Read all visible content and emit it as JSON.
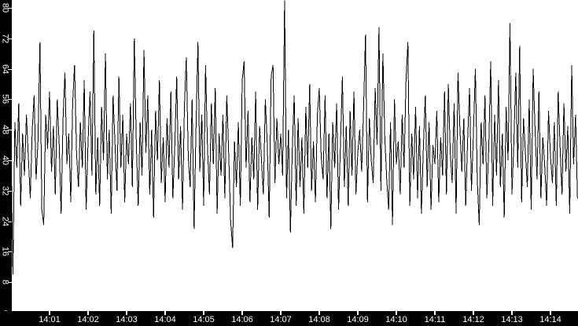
{
  "window": {
    "background": "#ffffff"
  },
  "chart_data": {
    "type": "line",
    "title": "",
    "legend": "none",
    "grid": "off",
    "line_color": "#000000",
    "plot_bg": "#ffffff",
    "axis_band_color": "#000000",
    "axis_label_color": "#ffffff",
    "x_start_time": "14:00",
    "sample_interval_seconds": 3,
    "x_tick_labels": [
      "14:01",
      "14:02",
      "14:03",
      "14:04",
      "14:05",
      "14:06",
      "14:07",
      "14:08",
      "14:09",
      "14:10",
      "14:11",
      "14:12",
      "14:13",
      "14:14"
    ],
    "y_ticks": [
      0,
      8,
      16,
      24,
      32,
      40,
      48,
      56,
      64,
      72,
      80
    ],
    "y_tick_labels": [
      "0",
      "8",
      "16",
      "24",
      "32",
      "40",
      "48",
      "56",
      "64",
      "72",
      "80"
    ],
    "ylim": [
      0,
      83
    ],
    "values": [
      44,
      10,
      50,
      38,
      55,
      28,
      47,
      36,
      52,
      41,
      30,
      48,
      57,
      35,
      45,
      71,
      27,
      23,
      52,
      43,
      58,
      37,
      49,
      31,
      56,
      44,
      26,
      51,
      63,
      39,
      47,
      29,
      55,
      65,
      42,
      33,
      50,
      38,
      61,
      27,
      45,
      58,
      36,
      74,
      31,
      46,
      28,
      54,
      40,
      68,
      35,
      48,
      26,
      57,
      44,
      32,
      62,
      38,
      52,
      29,
      47,
      39,
      55,
      33,
      72,
      45,
      28,
      50,
      36,
      69,
      42,
      57,
      31,
      48,
      25,
      53,
      40,
      61,
      34,
      46,
      29,
      51,
      38,
      58,
      30,
      44,
      62,
      35,
      49,
      27,
      54,
      67,
      41,
      33,
      56,
      22,
      48,
      71,
      37,
      52,
      28,
      65,
      43,
      31,
      55,
      39,
      59,
      26,
      47,
      36,
      52,
      30,
      57,
      41,
      24,
      17,
      45,
      33,
      50,
      28,
      61,
      66,
      38,
      53,
      29,
      46,
      35,
      58,
      27,
      49,
      40,
      31,
      56,
      44,
      25,
      62,
      65,
      34,
      51,
      39,
      47,
      36,
      82,
      30,
      48,
      21,
      43,
      57,
      28,
      51,
      33,
      46,
      26,
      54,
      38,
      60,
      32,
      45,
      29,
      52,
      59,
      41,
      35,
      57,
      30,
      47,
      22,
      50,
      38,
      55,
      27,
      44,
      62,
      33,
      49,
      28,
      53,
      36,
      58,
      31,
      42,
      48,
      37,
      54,
      73,
      29,
      51,
      40,
      34,
      59,
      44,
      75,
      32,
      68,
      46,
      35,
      27,
      50,
      23,
      56,
      39,
      45,
      31,
      52,
      38,
      61,
      71,
      28,
      47,
      35,
      54,
      30,
      49,
      26,
      43,
      57,
      33,
      50,
      27,
      44,
      39,
      53,
      29,
      46,
      36,
      58,
      31,
      60,
      42,
      34,
      55,
      26,
      63,
      48,
      37,
      51,
      28,
      45,
      59,
      32,
      47,
      64,
      35,
      23,
      50,
      39,
      57,
      30,
      44,
      66,
      28,
      52,
      36,
      61,
      33,
      47,
      25,
      54,
      40,
      76,
      31,
      45,
      63,
      38,
      70,
      29,
      51,
      42,
      33,
      56,
      27,
      64,
      48,
      35,
      58,
      30,
      46,
      39,
      28,
      53,
      41,
      34,
      50,
      28,
      58,
      43,
      31,
      55,
      37,
      49,
      26,
      65,
      39,
      52,
      30
    ]
  }
}
